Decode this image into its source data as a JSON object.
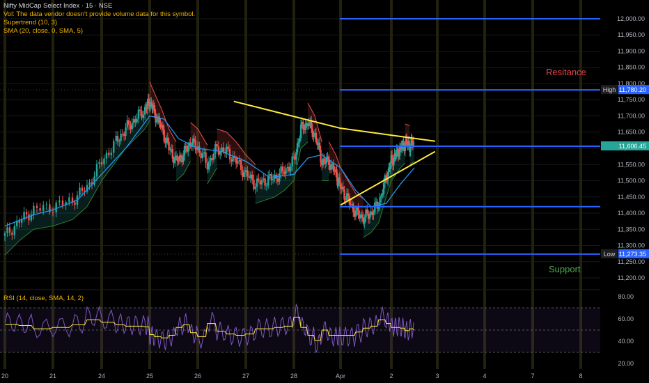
{
  "legend": {
    "symbol": "Nifty MidCap Select Index · 15 · NSE",
    "vol_note": "Vol: The data vendor doesn't provide volume data for this symbol.",
    "supertrend": "Supertrend (10, 3)",
    "sma": "SMA (20, close, 0, SMA, 5)"
  },
  "rsi_label": "RSI (14, close, SMA, 14, 2)",
  "annotations": {
    "resistance": "Resitance",
    "support": "Support"
  },
  "colors": {
    "background": "#000000",
    "up": "#26a69a",
    "down": "#ef5350",
    "sma": "#2196f3",
    "trendline": "#ffeb3b",
    "level_line": "#2962ff",
    "rsi": "#7e57c2",
    "rsi_ma": "#ffeb3b",
    "resistance_text": "#e0474c",
    "support_text": "#4caf50"
  },
  "chart_data": {
    "type": "candlestick",
    "title": "Nifty MidCap Select Index · 15 · NSE",
    "y_axis_ticks": [
      "12,000.00",
      "11,950.00",
      "11,900.00",
      "11,850.00",
      "11,800.00",
      "11,750.00",
      "11,700.00",
      "11,650.00",
      "11,600.00",
      "11,550.00",
      "11,500.00",
      "11,450.00",
      "11,400.00",
      "11,350.00",
      "11,300.00",
      "11,250.00",
      "11,200.00"
    ],
    "ylim": [
      11170,
      12030
    ],
    "x_axis_ticks": [
      "20",
      "21",
      "24",
      "25",
      "26",
      "27",
      "28",
      "Apr",
      "2",
      "3",
      "4",
      "7",
      "8"
    ],
    "price_tags": [
      {
        "label": "High",
        "value": "11,780.20"
      },
      {
        "label": "",
        "value": "11,606.45"
      },
      {
        "label": "Low",
        "value": "11,273.35"
      }
    ],
    "horizontal_levels": [
      12000,
      11780.2,
      11606.45,
      11420,
      11273.35
    ],
    "trendlines": [
      {
        "name": "resistance",
        "points": [
          [
            24.75,
            11745
          ],
          [
            27.0,
            11662
          ],
          [
            28.95,
            11622
          ]
        ]
      },
      {
        "name": "support",
        "points": [
          [
            27.0,
            11425
          ],
          [
            28.95,
            11590
          ]
        ]
      }
    ],
    "close_path": [
      [
        20.0,
        11330
      ],
      [
        20.3,
        11375
      ],
      [
        20.6,
        11410
      ],
      [
        21.0,
        11420
      ],
      [
        21.4,
        11440
      ],
      [
        21.7,
        11480
      ],
      [
        22.0,
        11560
      ],
      [
        22.3,
        11620
      ],
      [
        22.5,
        11660
      ],
      [
        22.7,
        11690
      ],
      [
        22.9,
        11720
      ],
      [
        23.0,
        11745
      ],
      [
        23.1,
        11710
      ],
      [
        23.25,
        11660
      ],
      [
        23.4,
        11600
      ],
      [
        23.55,
        11560
      ],
      [
        23.7,
        11580
      ],
      [
        23.85,
        11620
      ],
      [
        24.0,
        11600
      ],
      [
        24.2,
        11550
      ],
      [
        24.4,
        11600
      ],
      [
        24.6,
        11590
      ],
      [
        24.8,
        11560
      ],
      [
        25.0,
        11520
      ],
      [
        25.2,
        11490
      ],
      [
        25.4,
        11500
      ],
      [
        25.6,
        11510
      ],
      [
        25.8,
        11530
      ],
      [
        26.0,
        11560
      ],
      [
        26.15,
        11660
      ],
      [
        26.3,
        11680
      ],
      [
        26.45,
        11640
      ],
      [
        26.6,
        11560
      ],
      [
        26.75,
        11560
      ],
      [
        26.9,
        11520
      ],
      [
        27.0,
        11480
      ],
      [
        27.15,
        11440
      ],
      [
        27.3,
        11400
      ],
      [
        27.45,
        11385
      ],
      [
        27.6,
        11400
      ],
      [
        27.75,
        11430
      ],
      [
        27.9,
        11510
      ],
      [
        28.0,
        11560
      ],
      [
        28.1,
        11580
      ],
      [
        28.2,
        11600
      ],
      [
        28.3,
        11615
      ],
      [
        28.4,
        11610
      ],
      [
        28.5,
        11620
      ]
    ],
    "sma_path": [
      [
        20.0,
        11360
      ],
      [
        20.6,
        11395
      ],
      [
        21.0,
        11410
      ],
      [
        21.5,
        11440
      ],
      [
        22.0,
        11520
      ],
      [
        22.5,
        11600
      ],
      [
        23.0,
        11700
      ],
      [
        23.3,
        11690
      ],
      [
        23.6,
        11630
      ],
      [
        24.0,
        11600
      ],
      [
        24.5,
        11590
      ],
      [
        25.0,
        11560
      ],
      [
        25.5,
        11510
      ],
      [
        26.0,
        11520
      ],
      [
        26.3,
        11570
      ],
      [
        26.6,
        11580
      ],
      [
        27.0,
        11540
      ],
      [
        27.3,
        11470
      ],
      [
        27.6,
        11420
      ],
      [
        27.9,
        11430
      ],
      [
        28.2,
        11490
      ],
      [
        28.5,
        11540
      ]
    ],
    "rsi": {
      "levels": [
        70,
        50,
        30
      ],
      "y_ticks": [
        "80.00",
        "60.00",
        "40.00",
        "20.00"
      ],
      "ylim": [
        15,
        85
      ]
    },
    "xlabel": "",
    "ylabel": ""
  }
}
